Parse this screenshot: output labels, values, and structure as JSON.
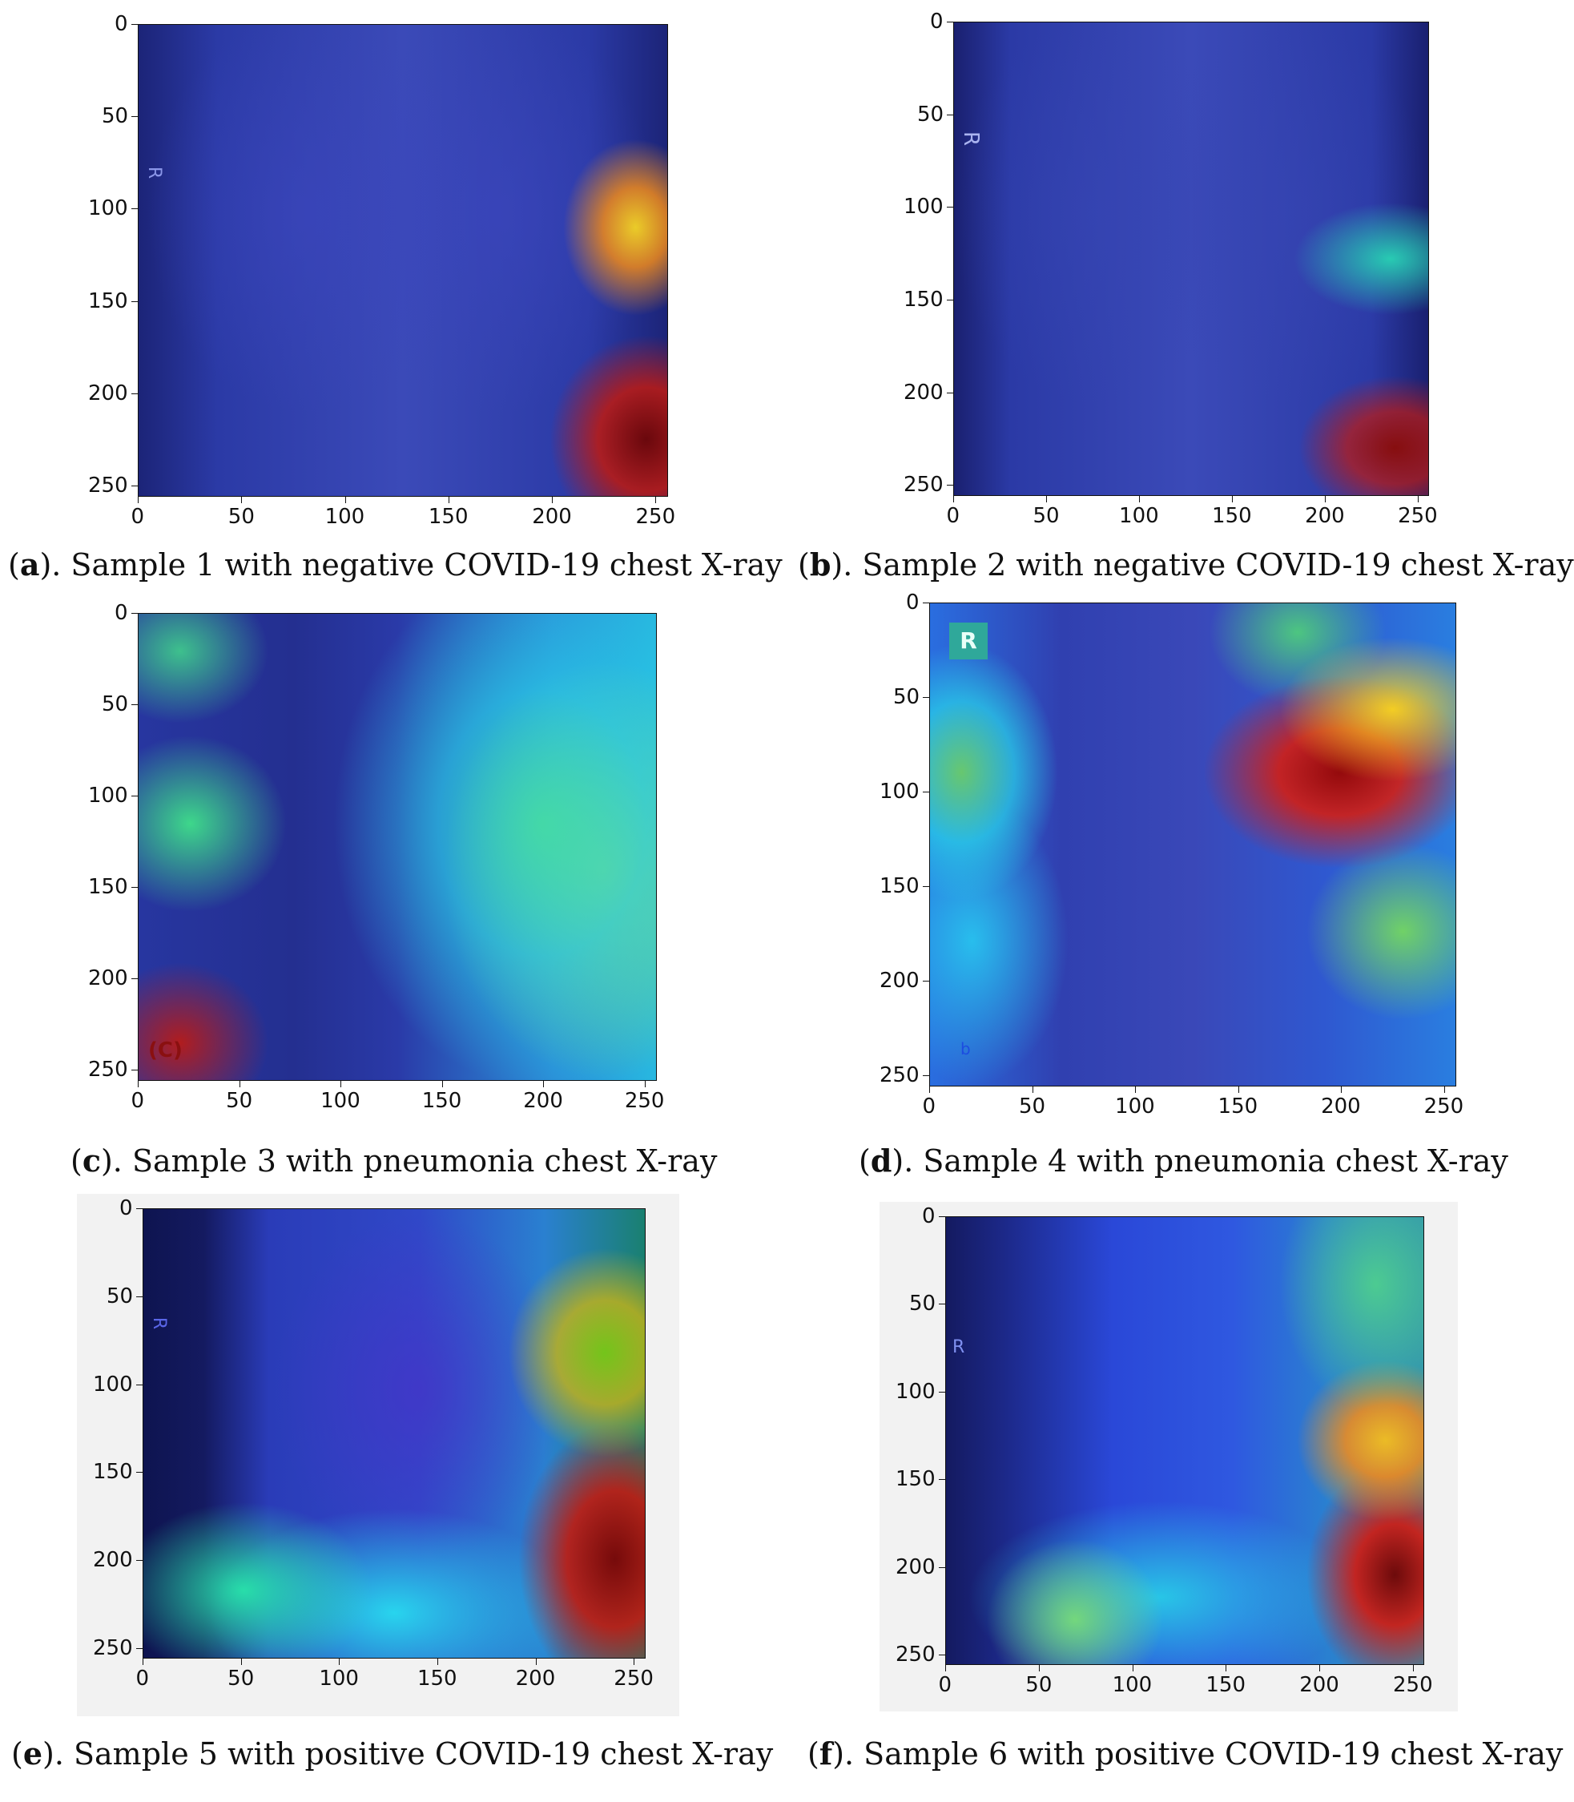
{
  "panels": [
    {
      "id": "a",
      "letter": "a",
      "caption": "). Sample 1 with negative COVID-19 chest X-ray",
      "open": "(",
      "marker": "R",
      "xticks": [
        "0",
        "50",
        "100",
        "150",
        "200",
        "250"
      ],
      "yticks": [
        "0",
        "50",
        "100",
        "150",
        "200",
        "250"
      ]
    },
    {
      "id": "b",
      "letter": "b",
      "caption": "). Sample 2 with negative COVID-19 chest X-ray",
      "open": "(",
      "marker": "R",
      "xticks": [
        "0",
        "50",
        "100",
        "150",
        "200",
        "250"
      ],
      "yticks": [
        "0",
        "50",
        "100",
        "150",
        "200",
        "250"
      ]
    },
    {
      "id": "c",
      "letter": "c",
      "caption": "). Sample 3 with pneumonia chest X-ray",
      "open": "(",
      "marker": "(C)",
      "xticks": [
        "0",
        "50",
        "100",
        "150",
        "200",
        "250"
      ],
      "yticks": [
        "0",
        "50",
        "100",
        "150",
        "200",
        "250"
      ]
    },
    {
      "id": "d",
      "letter": "d",
      "caption": "). Sample 4 with pneumonia chest X-ray",
      "open": "(",
      "marker": "R",
      "marker2": "b",
      "xticks": [
        "0",
        "50",
        "100",
        "150",
        "200",
        "250"
      ],
      "yticks": [
        "0",
        "50",
        "100",
        "150",
        "200",
        "250"
      ]
    },
    {
      "id": "e",
      "letter": "e",
      "caption": "). Sample 5 with positive COVID-19 chest X-ray",
      "open": "(",
      "marker": "R",
      "xticks": [
        "0",
        "50",
        "100",
        "150",
        "200",
        "250"
      ],
      "yticks": [
        "0",
        "50",
        "100",
        "150",
        "200",
        "250"
      ]
    },
    {
      "id": "f",
      "letter": "f",
      "caption": "). Sample 6 with positive COVID-19 chest X-ray",
      "open": "(",
      "marker": "R",
      "xticks": [
        "0",
        "50",
        "100",
        "150",
        "200",
        "250"
      ],
      "yticks": [
        "0",
        "50",
        "100",
        "150",
        "200",
        "250"
      ]
    }
  ],
  "colors": {
    "xray_base": "#2a3aa8",
    "deep_blue": "#1a1f6e",
    "cyan": "#28d3e8",
    "green": "#3fe08a",
    "yellow": "#f5d423",
    "orange": "#f08a1a",
    "red": "#c01a10",
    "dark_red": "#6e0606"
  }
}
